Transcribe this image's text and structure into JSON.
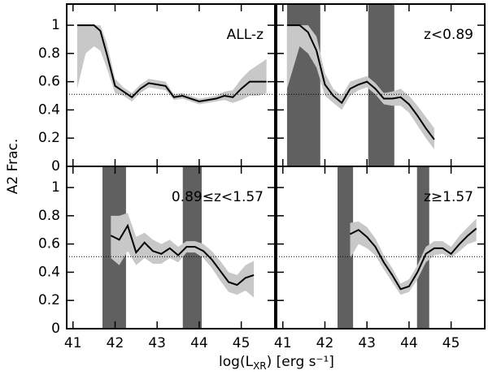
{
  "figure": {
    "ylabel": "A2 Frac.",
    "xlabel": [
      "log(L",
      "XR",
      ") [erg s⁻¹]"
    ]
  },
  "chart_data": [
    {
      "type": "line",
      "title": "ALL-z",
      "x": [
        41.1,
        41.3,
        41.5,
        41.65,
        41.8,
        42.0,
        42.2,
        42.4,
        42.6,
        42.8,
        43.0,
        43.2,
        43.4,
        43.6,
        43.8,
        44.0,
        44.2,
        44.4,
        44.6,
        44.8,
        45.0,
        45.2,
        45.4,
        45.6
      ],
      "values": [
        1,
        1,
        1,
        0.96,
        0.8,
        0.57,
        0.53,
        0.49,
        0.55,
        0.59,
        0.58,
        0.57,
        0.49,
        0.5,
        0.48,
        0.46,
        0.47,
        0.48,
        0.5,
        0.49,
        0.55,
        0.6,
        0.6,
        0.6
      ],
      "lower": [
        0.55,
        0.8,
        0.85,
        0.82,
        0.7,
        0.52,
        0.5,
        0.46,
        0.52,
        0.56,
        0.55,
        0.54,
        0.47,
        0.48,
        0.46,
        0.44,
        0.45,
        0.46,
        0.47,
        0.45,
        0.47,
        0.5,
        0.5,
        0.52
      ],
      "upper": [
        1,
        1,
        1,
        1,
        0.88,
        0.62,
        0.56,
        0.52,
        0.58,
        0.62,
        0.61,
        0.6,
        0.51,
        0.52,
        0.5,
        0.48,
        0.49,
        0.5,
        0.53,
        0.54,
        0.62,
        0.68,
        0.72,
        0.76
      ],
      "shaded": [],
      "hline": 0.51,
      "color": "#000000",
      "band_color": "#c8c8c8",
      "shade_color": "#606060",
      "xlim": [
        40.85,
        45.8
      ],
      "ylim": [
        0,
        1.15
      ],
      "xticks": [
        41,
        42,
        43,
        44,
        45
      ],
      "yticks": [
        0,
        0.2,
        0.4,
        0.6,
        0.8,
        1
      ]
    },
    {
      "type": "line",
      "title": "z<0.89",
      "x": [
        41.1,
        41.4,
        41.6,
        41.8,
        42.0,
        42.2,
        42.4,
        42.6,
        42.8,
        43.0,
        43.2,
        43.4,
        43.6,
        43.8,
        44.0,
        44.2,
        44.4,
        44.6
      ],
      "values": [
        1,
        1,
        0.95,
        0.82,
        0.58,
        0.5,
        0.45,
        0.55,
        0.58,
        0.6,
        0.55,
        0.48,
        0.48,
        0.49,
        0.44,
        0.36,
        0.27,
        0.19
      ],
      "lower": [
        0.55,
        0.85,
        0.8,
        0.7,
        0.5,
        0.45,
        0.4,
        0.5,
        0.54,
        0.56,
        0.51,
        0.44,
        0.43,
        0.43,
        0.38,
        0.29,
        0.2,
        0.12
      ],
      "upper": [
        1,
        1,
        1,
        0.92,
        0.66,
        0.55,
        0.5,
        0.6,
        0.62,
        0.64,
        0.59,
        0.52,
        0.53,
        0.55,
        0.5,
        0.43,
        0.35,
        0.27
      ],
      "shaded": [
        [
          41.1,
          41.89
        ],
        [
          43.03,
          43.65
        ]
      ],
      "hline": 0.51,
      "color": "#000000",
      "band_color": "#c8c8c8",
      "shade_color": "#606060",
      "xlim": [
        40.85,
        45.8
      ],
      "ylim": [
        0,
        1.15
      ],
      "xticks": [
        41,
        42,
        43,
        44,
        45
      ],
      "yticks": [
        0,
        0.2,
        0.4,
        0.6,
        0.8,
        1
      ]
    },
    {
      "type": "line",
      "title": "0.89≤z<1.57",
      "x": [
        41.9,
        42.1,
        42.3,
        42.5,
        42.7,
        42.9,
        43.1,
        43.3,
        43.5,
        43.7,
        43.9,
        44.1,
        44.3,
        44.5,
        44.7,
        44.9,
        45.1,
        45.3
      ],
      "values": [
        0.66,
        0.63,
        0.73,
        0.54,
        0.61,
        0.55,
        0.53,
        0.57,
        0.52,
        0.58,
        0.58,
        0.55,
        0.49,
        0.41,
        0.33,
        0.31,
        0.36,
        0.38
      ],
      "lower": [
        0.5,
        0.45,
        0.55,
        0.45,
        0.5,
        0.46,
        0.46,
        0.5,
        0.47,
        0.54,
        0.54,
        0.5,
        0.43,
        0.34,
        0.26,
        0.24,
        0.27,
        0.22
      ],
      "upper": [
        0.8,
        0.8,
        0.82,
        0.65,
        0.68,
        0.63,
        0.6,
        0.63,
        0.58,
        0.62,
        0.62,
        0.6,
        0.55,
        0.48,
        0.4,
        0.38,
        0.45,
        0.48
      ],
      "shaded": [
        [
          41.7,
          42.26
        ],
        [
          43.61,
          44.06
        ]
      ],
      "hline": 0.51,
      "color": "#000000",
      "band_color": "#c8c8c8",
      "shade_color": "#606060",
      "xlim": [
        40.85,
        45.8
      ],
      "ylim": [
        0,
        1.15
      ],
      "xticks": [
        41,
        42,
        43,
        44,
        45
      ],
      "yticks": [
        0,
        0.2,
        0.4,
        0.6,
        0.8,
        1
      ]
    },
    {
      "type": "line",
      "title": "z≥1.57",
      "x": [
        42.6,
        42.8,
        43.0,
        43.2,
        43.4,
        43.6,
        43.8,
        44.0,
        44.2,
        44.4,
        44.6,
        44.8,
        45.0,
        45.2,
        45.4,
        45.6
      ],
      "values": [
        0.67,
        0.7,
        0.65,
        0.58,
        0.47,
        0.38,
        0.28,
        0.3,
        0.4,
        0.53,
        0.57,
        0.57,
        0.53,
        0.6,
        0.66,
        0.71
      ],
      "lower": [
        0.5,
        0.6,
        0.57,
        0.52,
        0.42,
        0.33,
        0.24,
        0.26,
        0.35,
        0.47,
        0.52,
        0.53,
        0.5,
        0.55,
        0.6,
        0.62
      ],
      "upper": [
        0.75,
        0.76,
        0.72,
        0.64,
        0.52,
        0.43,
        0.32,
        0.35,
        0.45,
        0.58,
        0.62,
        0.62,
        0.58,
        0.66,
        0.72,
        0.78
      ],
      "shaded": [
        [
          42.3,
          42.67
        ],
        [
          44.19,
          44.48
        ]
      ],
      "hline": 0.51,
      "color": "#000000",
      "band_color": "#c8c8c8",
      "shade_color": "#606060",
      "xlim": [
        40.85,
        45.8
      ],
      "ylim": [
        0,
        1.15
      ],
      "xticks": [
        41,
        42,
        43,
        44,
        45
      ],
      "yticks": [
        0,
        0.2,
        0.4,
        0.6,
        0.8,
        1
      ]
    }
  ]
}
